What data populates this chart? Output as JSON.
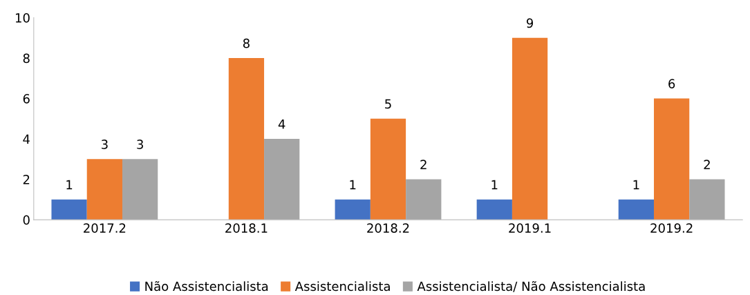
{
  "chart_data": {
    "type": "bar",
    "categories": [
      "2017.2",
      "2018.1",
      "2018.2",
      "2019.1",
      "2019.2"
    ],
    "series": [
      {
        "name": "Não Assistencialista",
        "color": "#4472c4",
        "values": [
          1,
          null,
          1,
          1,
          1
        ]
      },
      {
        "name": "Assistencialista",
        "color": "#ed7d31",
        "values": [
          3,
          8,
          5,
          9,
          6
        ]
      },
      {
        "name": "Assistencialista/ Não Assistencialista",
        "color": "#a5a5a5",
        "values": [
          3,
          4,
          2,
          null,
          2
        ]
      }
    ],
    "ylim": [
      0,
      10
    ],
    "yticks": [
      0,
      2,
      4,
      6,
      8,
      10
    ],
    "data_labels": true,
    "legend": "bottom"
  }
}
